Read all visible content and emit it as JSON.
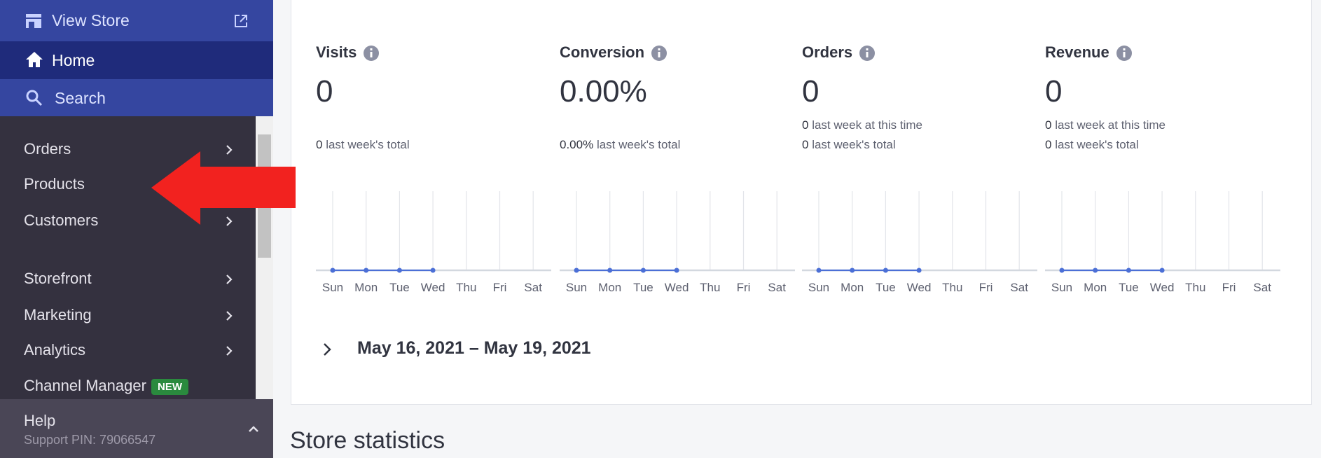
{
  "sidebar": {
    "view_store": "View Store",
    "home": "Home",
    "search": "Search",
    "items": [
      {
        "label": "Orders",
        "submenu": true
      },
      {
        "label": "Products",
        "submenu": true
      },
      {
        "label": "Customers",
        "submenu": true
      },
      {
        "label": "Storefront",
        "submenu": true
      },
      {
        "label": "Marketing",
        "submenu": true
      },
      {
        "label": "Analytics",
        "submenu": true
      },
      {
        "label": "Channel Manager",
        "submenu": false,
        "badge": "NEW"
      }
    ],
    "help": "Help",
    "support_pin": "Support PIN: 79066547"
  },
  "metrics": [
    {
      "title": "Visits",
      "value": "0",
      "lines": [
        {
          "value": "0",
          "label": "last week's total"
        }
      ]
    },
    {
      "title": "Conversion",
      "value": "0.00%",
      "lines": [
        {
          "value": "0.00%",
          "label": "last week's total"
        }
      ]
    },
    {
      "title": "Orders",
      "value": "0",
      "lines": [
        {
          "value": "0",
          "label": "last week at this time"
        },
        {
          "value": "0",
          "label": "last week's total"
        }
      ]
    },
    {
      "title": "Revenue",
      "value": "0",
      "lines": [
        {
          "value": "0",
          "label": "last week at this time"
        },
        {
          "value": "0",
          "label": "last week's total"
        }
      ]
    }
  ],
  "chart_data": [
    {
      "type": "line",
      "categories": [
        "Sun",
        "Mon",
        "Tue",
        "Wed",
        "Thu",
        "Fri",
        "Sat"
      ],
      "values": [
        0,
        0,
        0,
        0,
        null,
        null,
        null
      ],
      "color": "#4b6fd6"
    },
    {
      "type": "line",
      "categories": [
        "Sun",
        "Mon",
        "Tue",
        "Wed",
        "Thu",
        "Fri",
        "Sat"
      ],
      "values": [
        0,
        0,
        0,
        0,
        null,
        null,
        null
      ],
      "color": "#4b6fd6"
    },
    {
      "type": "line",
      "categories": [
        "Sun",
        "Mon",
        "Tue",
        "Wed",
        "Thu",
        "Fri",
        "Sat"
      ],
      "values": [
        0,
        0,
        0,
        0,
        null,
        null,
        null
      ],
      "color": "#4b6fd6"
    },
    {
      "type": "line",
      "categories": [
        "Sun",
        "Mon",
        "Tue",
        "Wed",
        "Thu",
        "Fri",
        "Sat"
      ],
      "values": [
        0,
        0,
        0,
        0,
        null,
        null,
        null
      ],
      "color": "#4b6fd6"
    }
  ],
  "date_range": "May 16, 2021 – May 19, 2021",
  "section_title": "Store statistics"
}
